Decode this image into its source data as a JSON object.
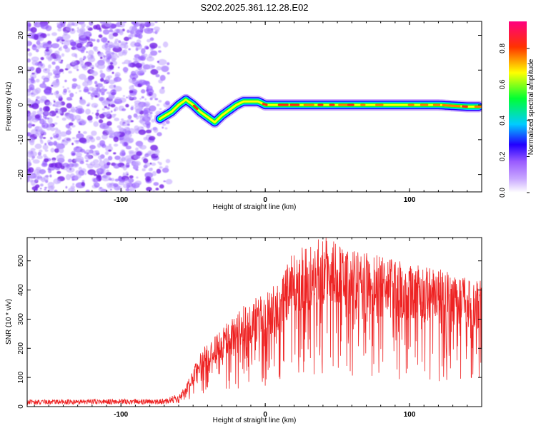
{
  "title": "S202.2025.361.12.28.E02",
  "chart_data": [
    {
      "type": "heatmap",
      "name": "spectrogram",
      "xlabel": "Height of straight line (km)",
      "ylabel": "Frequency (Hz)",
      "xlim": [
        -165,
        150
      ],
      "ylim": [
        -25,
        24
      ],
      "xticks": [
        -100,
        0,
        100
      ],
      "yticks": [
        -20,
        -10,
        0,
        10,
        20
      ],
      "noise_region_x": [
        -165,
        -70
      ],
      "signal_track": {
        "x": [
          -73,
          -65,
          -60,
          -55,
          -50,
          -45,
          -40,
          -35,
          -30,
          -25,
          -20,
          -15,
          -10,
          -5,
          0,
          10,
          20,
          40,
          60,
          80,
          100,
          120,
          140,
          148
        ],
        "y": [
          -4,
          -2,
          0,
          1.5,
          0,
          -2,
          -3.5,
          -5,
          -3,
          -1.5,
          0,
          1,
          1,
          1,
          0,
          0,
          0,
          0,
          0,
          0,
          0,
          0,
          -0.5,
          -0.5
        ]
      },
      "colorbar": {
        "label": "Normalized spectral amplitude",
        "range": [
          0.0,
          0.95
        ],
        "ticks": [
          "0.0",
          "0.2",
          "0.4",
          "0.6",
          "0.8"
        ],
        "colors": [
          "#ffffff",
          "#9a5cff",
          "#2200ff",
          "#00ccff",
          "#00ff33",
          "#ffff00",
          "#ff3300",
          "#ff0080"
        ]
      }
    },
    {
      "type": "line",
      "name": "snr",
      "xlabel": "Height of straight line (km)",
      "ylabel": "SNR (10 * v/v)",
      "xlim": [
        -165,
        150
      ],
      "ylim": [
        0,
        580
      ],
      "xticks": [
        -100,
        0,
        100
      ],
      "yticks": [
        0,
        100,
        200,
        300,
        400,
        500
      ],
      "color": "#ee2222",
      "envelope": {
        "x": [
          -165,
          -100,
          -70,
          -60,
          -55,
          -50,
          -45,
          -40,
          -35,
          -30,
          -20,
          -10,
          0,
          10,
          15,
          20,
          30,
          40,
          50,
          60,
          70,
          80,
          90,
          100,
          110,
          120,
          130,
          140,
          150
        ],
        "y": [
          18,
          20,
          20,
          35,
          70,
          120,
          180,
          205,
          220,
          250,
          300,
          330,
          355,
          395,
          450,
          490,
          520,
          540,
          520,
          490,
          480,
          470,
          460,
          455,
          440,
          430,
          415,
          405,
          395
        ]
      }
    }
  ]
}
